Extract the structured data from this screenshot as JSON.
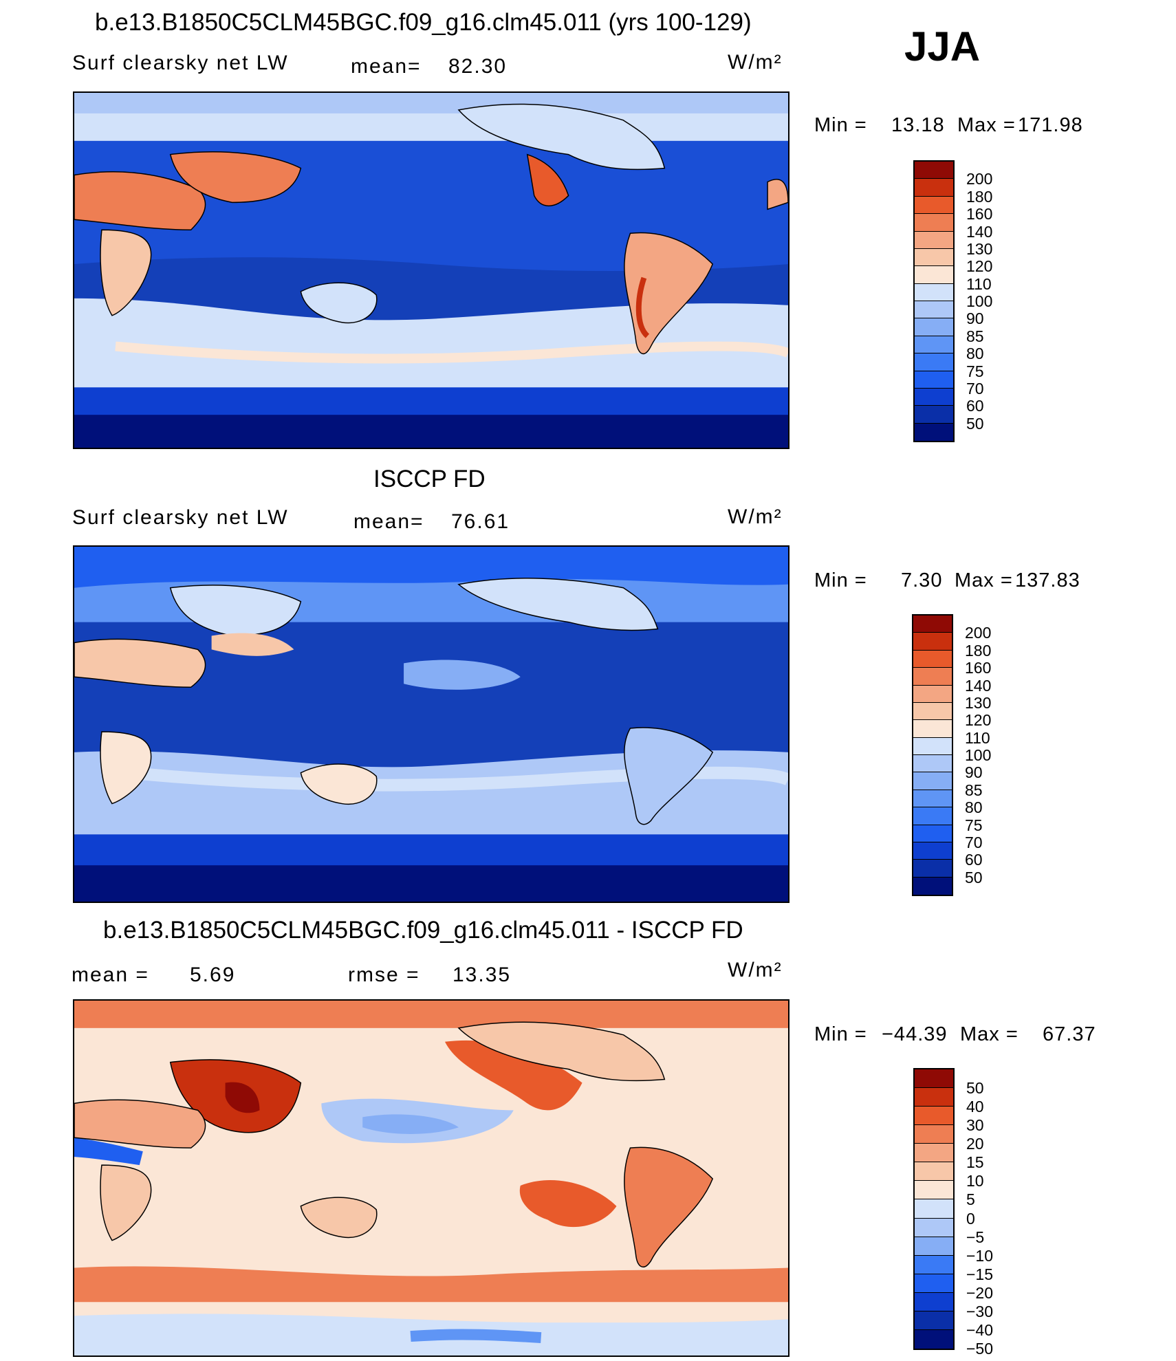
{
  "season": "JJA",
  "units": "W/m²",
  "colors": {
    "abs": [
      "#00107a",
      "#0a2fa8",
      "#0e3fd0",
      "#1f5ff0",
      "#3a7af5",
      "#5f95f5",
      "#86aef5",
      "#aec8f7",
      "#d2e2fa",
      "#fbe6d6",
      "#f7c7a9",
      "#f3a683",
      "#ee7e53",
      "#e85a2b",
      "#c9300e",
      "#8f0a05"
    ],
    "diff": [
      "#00107a",
      "#0a2fa8",
      "#0e3fd0",
      "#1f5ff0",
      "#3a7af5",
      "#86aef5",
      "#aec8f7",
      "#d2e2fa",
      "#fbe6d6",
      "#f7c7a9",
      "#f3a683",
      "#ee7e53",
      "#e85a2b",
      "#c9300e",
      "#8f0a05"
    ]
  },
  "panels": [
    {
      "title": "b.e13.B1850C5CLM45BGC.f09_g16.clm45.011 (yrs 100-129)",
      "variable": "Surf clearsky net LW",
      "mean_label": "mean=",
      "mean_value": "82.30",
      "units": "W/m²",
      "min_label": "Min =",
      "min_value": "13.18",
      "max_label": "Max =",
      "max_value": "171.98",
      "levels": [
        "200",
        "180",
        "160",
        "140",
        "130",
        "120",
        "110",
        "100",
        "90",
        "85",
        "80",
        "75",
        "70",
        "60",
        "50"
      ],
      "palette": "abs"
    },
    {
      "title": "ISCCP FD",
      "variable": "Surf clearsky net LW",
      "mean_label": "mean=",
      "mean_value": "76.61",
      "units": "W/m²",
      "min_label": "Min =",
      "min_value": "7.30",
      "max_label": "Max =",
      "max_value": "137.83",
      "levels": [
        "200",
        "180",
        "160",
        "140",
        "130",
        "120",
        "110",
        "100",
        "90",
        "85",
        "80",
        "75",
        "70",
        "60",
        "50"
      ],
      "palette": "abs"
    },
    {
      "title": "b.e13.B1850C5CLM45BGC.f09_g16.clm45.011 - ISCCP FD",
      "mean_label": "mean =",
      "mean_value": "5.69",
      "rmse_label": "rmse =",
      "rmse_value": "13.35",
      "units": "W/m²",
      "min_label": "Min =",
      "min_value": "−44.39",
      "max_label": "Max =",
      "max_value": "67.37",
      "levels": [
        "50",
        "40",
        "30",
        "20",
        "15",
        "10",
        "5",
        "0",
        "−5",
        "−10",
        "−15",
        "−20",
        "−30",
        "−40",
        "−50"
      ],
      "palette": "diff"
    }
  ]
}
